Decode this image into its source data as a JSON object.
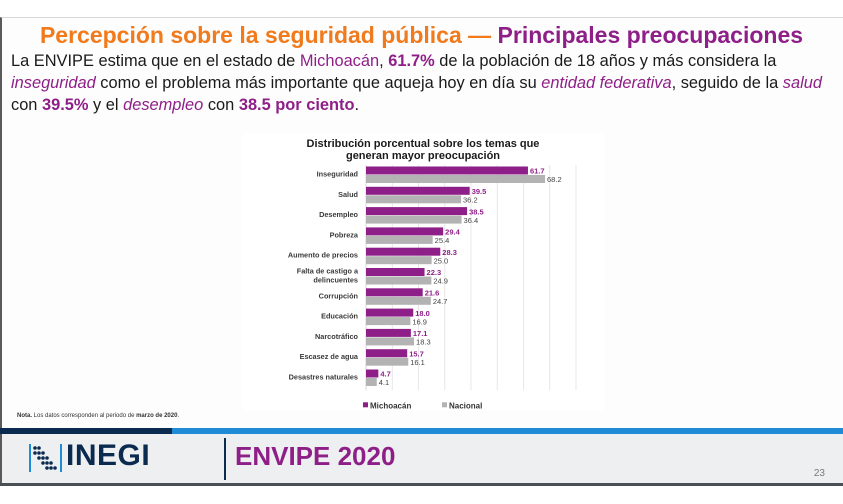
{
  "slide": {
    "title_part1": "Percepción sobre la seguridad pública —",
    "title_part2": "Principales preocupaciones",
    "lead": {
      "s1": "La ENVIPE estima que en el estado de ",
      "state": "Michoacán",
      "s2": ", ",
      "v1": "61.7%",
      "s3": " de la población de 18 años y más considera la ",
      "t1": "inseguridad",
      "s4": " como el problema más importante que aqueja hoy en día su ",
      "t2": "entidad federativa",
      "s5": ", seguido de la ",
      "t3": "salud",
      "s6": " con ",
      "v2": "39.5%",
      "s7": " y el ",
      "t4": "desempleo",
      "s8": " con ",
      "v3": "38.5 por ciento",
      "s9": "."
    },
    "note_bold": "Nota.",
    "note_text": " Los datos corresponden al periodo de ",
    "note_period": "marzo de 2020",
    "note_end": ".",
    "footer": {
      "logo": "INEGI",
      "survey": "ENVIPE 2020",
      "page_number": "23"
    }
  },
  "colors": {
    "michoacan": "#8e1f88",
    "nacional": "#b3b3b3",
    "title_orange": "#f07a1c",
    "brand_navy": "#0b2a4f",
    "brand_blue": "#1f8ad6"
  },
  "chart_data": {
    "type": "bar",
    "orientation": "horizontal",
    "title": "Distribución porcentual sobre los temas que generan mayor preocupación",
    "title_lines": [
      "Distribución porcentual sobre los temas que",
      "generan mayor preocupación"
    ],
    "categories": [
      "Inseguridad",
      "Salud",
      "Desempleo",
      "Pobreza",
      "Aumento de precios",
      "Falta de castigo a delincuentes",
      "Corrupción",
      "Educación",
      "Narcotráfico",
      "Escasez de agua",
      "Desastres naturales"
    ],
    "category_lines": [
      [
        "Inseguridad"
      ],
      [
        "Salud"
      ],
      [
        "Desempleo"
      ],
      [
        "Pobreza"
      ],
      [
        "Aumento de precios"
      ],
      [
        "Falta de castigo a",
        "delincuentes"
      ],
      [
        "Corrupción"
      ],
      [
        "Educación"
      ],
      [
        "Narcotráfico"
      ],
      [
        "Escasez de agua"
      ],
      [
        "Desastres naturales"
      ]
    ],
    "series": [
      {
        "name": "Michoacán",
        "color": "#8e1f88",
        "values": [
          61.7,
          39.5,
          38.5,
          29.4,
          28.3,
          22.3,
          21.6,
          18.0,
          17.1,
          15.7,
          4.7
        ]
      },
      {
        "name": "Nacional",
        "color": "#b3b3b3",
        "values": [
          68.2,
          36.2,
          36.4,
          25.4,
          25.0,
          24.9,
          24.7,
          16.9,
          18.3,
          16.1,
          4.1
        ]
      }
    ],
    "xlim": [
      0,
      80
    ],
    "grid": true,
    "legend": "bottom",
    "data_labels": true
  }
}
